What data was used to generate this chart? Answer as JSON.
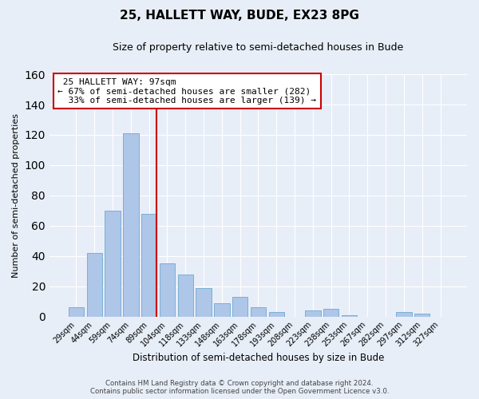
{
  "title": "25, HALLETT WAY, BUDE, EX23 8PG",
  "subtitle": "Size of property relative to semi-detached houses in Bude",
  "xlabel": "Distribution of semi-detached houses by size in Bude",
  "ylabel": "Number of semi-detached properties",
  "bin_labels": [
    "29sqm",
    "44sqm",
    "59sqm",
    "74sqm",
    "89sqm",
    "104sqm",
    "118sqm",
    "133sqm",
    "148sqm",
    "163sqm",
    "178sqm",
    "193sqm",
    "208sqm",
    "223sqm",
    "238sqm",
    "253sqm",
    "267sqm",
    "282sqm",
    "297sqm",
    "312sqm",
    "327sqm"
  ],
  "bar_values": [
    6,
    42,
    70,
    121,
    68,
    35,
    28,
    19,
    9,
    13,
    6,
    3,
    0,
    4,
    5,
    1,
    0,
    0,
    3,
    2,
    0
  ],
  "bar_color": "#aec6e8",
  "bar_edge_color": "#7bafd4",
  "property_line_bin_index": 4,
  "property_label": "25 HALLETT WAY: 97sqm",
  "pct_smaller": 67,
  "count_smaller": 282,
  "pct_larger": 33,
  "count_larger": 139,
  "annotation_box_color": "#ffffff",
  "annotation_box_edge": "#cc0000",
  "line_color": "#cc0000",
  "ylim": [
    0,
    160
  ],
  "yticks": [
    0,
    20,
    40,
    60,
    80,
    100,
    120,
    140,
    160
  ],
  "footer_line1": "Contains HM Land Registry data © Crown copyright and database right 2024.",
  "footer_line2": "Contains public sector information licensed under the Open Government Licence v3.0.",
  "bg_color": "#e8eef8",
  "grid_color": "#ffffff",
  "title_fontsize": 11,
  "subtitle_fontsize": 9
}
